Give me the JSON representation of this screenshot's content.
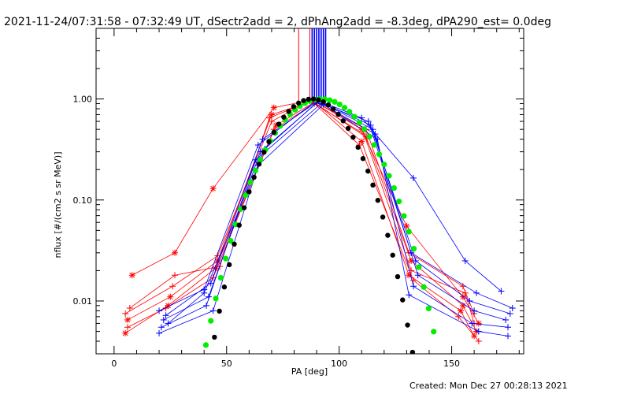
{
  "chart_data": {
    "type": "line",
    "title": "2021-11-24/07:31:58 - 07:32:49 UT, dSectr2add = 2, dPhAng2add = -8.3deg, dPA290_est=  0.0deg",
    "xlabel": "PA [deg]",
    "ylabel": "nflux [#/(cm2 s sr MeV)]",
    "xlim": [
      -8,
      182
    ],
    "ylim": [
      0.003,
      5
    ],
    "yscale": "log",
    "xticks": [
      0,
      50,
      100,
      150
    ],
    "xtick_labels": [
      "0",
      "50",
      "100",
      "150"
    ],
    "yticks": [
      0.01,
      0.1,
      1.0
    ],
    "ytick_labels": [
      "0.01",
      "0.10",
      "1.00"
    ],
    "footer": "Created: Mon Dec 27 00:28:13 2021",
    "vertical_lines": [
      {
        "color": "#ff0000",
        "x": [
          82,
          87,
          89
        ]
      },
      {
        "color": "#0000ff",
        "x": [
          88,
          89,
          90,
          91,
          92,
          93,
          94
        ]
      }
    ],
    "fit_curves": [
      {
        "color": "#00ee00",
        "marker": "circle",
        "x_min": 32,
        "x_max": 157
      },
      {
        "color": "#000000",
        "marker": "circle",
        "x_min": 38,
        "x_max": 160
      }
    ],
    "series": [
      {
        "color": "#ff0000",
        "marker": "star",
        "x": [
          8,
          27,
          44,
          71,
          88,
          110,
          130,
          155,
          162
        ],
        "values": [
          0.018,
          0.03,
          0.13,
          0.82,
          0.98,
          0.5,
          0.055,
          0.011,
          0.006
        ]
      },
      {
        "color": "#ff0000",
        "marker": "star",
        "x": [
          6,
          25,
          46,
          70,
          88,
          112,
          132,
          155,
          161
        ],
        "values": [
          0.0065,
          0.011,
          0.025,
          0.7,
          0.95,
          0.42,
          0.025,
          0.009,
          0.005
        ]
      },
      {
        "color": "#ff0000",
        "marker": "star",
        "x": [
          5,
          24,
          45,
          72,
          89,
          110,
          131,
          154,
          160
        ],
        "values": [
          0.0048,
          0.009,
          0.021,
          0.55,
          0.93,
          0.38,
          0.018,
          0.008,
          0.0045
        ]
      },
      {
        "color": "#ff0000",
        "marker": "plus",
        "x": [
          5,
          26,
          46,
          70,
          87,
          111,
          132,
          156,
          160
        ],
        "values": [
          0.0075,
          0.014,
          0.028,
          0.6,
          0.96,
          0.45,
          0.02,
          0.012,
          0.006
        ]
      },
      {
        "color": "#ff0000",
        "marker": "plus",
        "x": [
          6,
          23,
          44,
          71,
          89,
          109,
          133,
          153,
          162
        ],
        "values": [
          0.0055,
          0.0085,
          0.017,
          0.5,
          0.9,
          0.35,
          0.016,
          0.007,
          0.004
        ]
      },
      {
        "color": "#ff0000",
        "marker": "plus",
        "x": [
          7,
          27,
          47,
          69,
          88,
          112,
          131,
          155,
          160
        ],
        "values": [
          0.0085,
          0.018,
          0.022,
          0.65,
          0.97,
          0.5,
          0.03,
          0.014,
          0.0075
        ]
      },
      {
        "color": "#0000ff",
        "marker": "plus",
        "x": [
          20,
          40,
          64,
          90,
          114,
          134,
          158,
          176
        ],
        "values": [
          0.008,
          0.013,
          0.35,
          0.97,
          0.55,
          0.025,
          0.01,
          0.0075
        ]
      },
      {
        "color": "#0000ff",
        "marker": "plus",
        "x": [
          22,
          42,
          65,
          91,
          115,
          135,
          160,
          174
        ],
        "values": [
          0.0065,
          0.011,
          0.3,
          0.95,
          0.5,
          0.018,
          0.008,
          0.0065
        ]
      },
      {
        "color": "#0000ff",
        "marker": "plus",
        "x": [
          21,
          41,
          63,
          92,
          116,
          133,
          159,
          175
        ],
        "values": [
          0.0055,
          0.009,
          0.25,
          0.9,
          0.45,
          0.014,
          0.006,
          0.0055
        ]
      },
      {
        "color": "#0000ff",
        "marker": "plus",
        "x": [
          23,
          43,
          66,
          90,
          113,
          132,
          161,
          177
        ],
        "values": [
          0.0072,
          0.015,
          0.4,
          0.93,
          0.6,
          0.03,
          0.012,
          0.0085
        ]
      },
      {
        "color": "#0000ff",
        "marker": "plus",
        "x": [
          20,
          44,
          64,
          93,
          117,
          131,
          162,
          175
        ],
        "values": [
          0.0048,
          0.008,
          0.22,
          0.88,
          0.4,
          0.0115,
          0.005,
          0.0045
        ]
      },
      {
        "color": "#0000ff",
        "marker": "plus",
        "x": [
          24,
          40,
          67,
          91,
          110,
          133,
          156,
          172
        ],
        "values": [
          0.006,
          0.012,
          0.32,
          0.96,
          0.65,
          0.165,
          0.025,
          0.0125
        ]
      }
    ]
  }
}
